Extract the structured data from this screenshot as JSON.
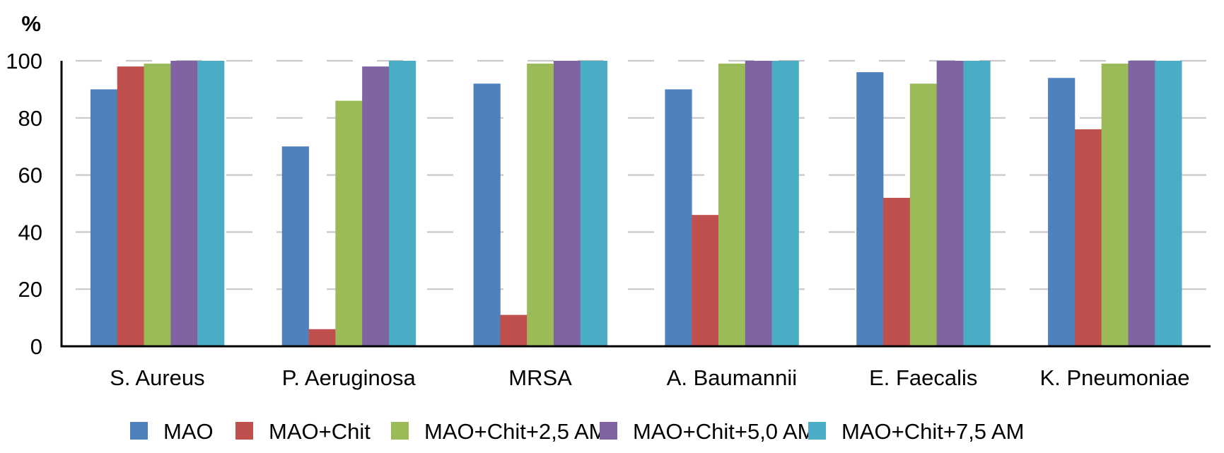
{
  "chart_data": {
    "type": "bar",
    "title": "",
    "xlabel": "",
    "ylabel": "%",
    "ylim": [
      0,
      100
    ],
    "yticks": [
      0,
      20,
      40,
      60,
      80,
      100
    ],
    "grid": true,
    "legend_position": "bottom",
    "categories": [
      "S. Aureus",
      "P. Aeruginosa",
      "MRSA",
      "A. Baumannii",
      "E. Faecalis",
      "K. Pneumoniae"
    ],
    "series": [
      {
        "name": "MAO",
        "color": "#4F81BD",
        "values": [
          90,
          70,
          92,
          90,
          96,
          94
        ]
      },
      {
        "name": "MAO+Chit",
        "color": "#C0504D",
        "values": [
          98,
          6,
          11,
          46,
          52,
          76
        ]
      },
      {
        "name": "MAO+Chit+2,5 AM",
        "color": "#9BBB59",
        "values": [
          99,
          86,
          99,
          99,
          92,
          99
        ]
      },
      {
        "name": "MAO+Chit+5,0 AM",
        "color": "#8064A2",
        "values": [
          100,
          98,
          100,
          100,
          100,
          100
        ]
      },
      {
        "name": "MAO+Chit+7,5 AM",
        "color": "#4BACC6",
        "values": [
          100,
          100,
          100,
          100,
          100,
          100
        ]
      }
    ]
  }
}
